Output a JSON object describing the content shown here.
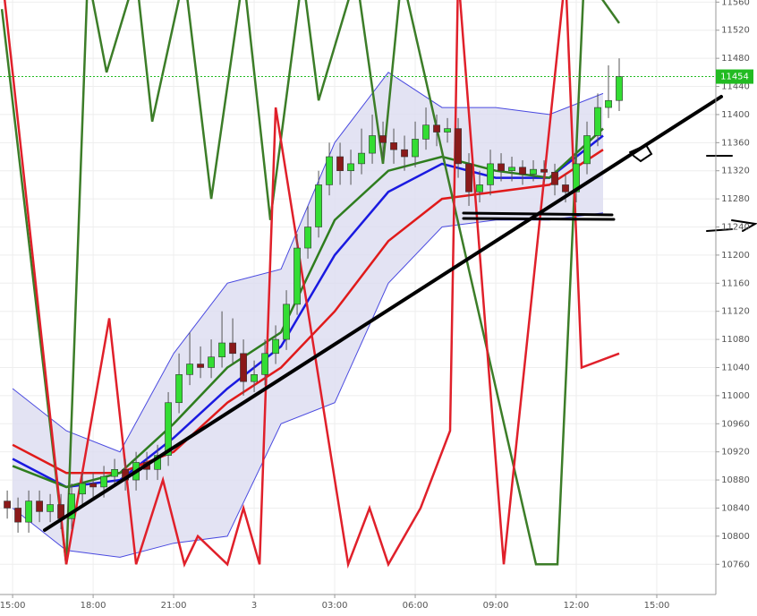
{
  "chart_data": {
    "type": "candlestick",
    "xlim": [
      -0.47,
      26.2
    ],
    "ylim": [
      10717,
      11563
    ],
    "xticks": [
      {
        "value": 0,
        "label": "15:00"
      },
      {
        "value": 3,
        "label": "18:00"
      },
      {
        "value": 6,
        "label": "21:00"
      },
      {
        "value": 9,
        "label": "3"
      },
      {
        "value": 12,
        "label": "03:00"
      },
      {
        "value": 15,
        "label": "06:00"
      },
      {
        "value": 18,
        "label": "09:00"
      },
      {
        "value": 21,
        "label": "12:00"
      },
      {
        "value": 24,
        "label": "15:00"
      }
    ],
    "yticks": [
      10760,
      10800,
      10840,
      10880,
      10920,
      10960,
      11000,
      11040,
      11080,
      11120,
      11160,
      11200,
      11240,
      11280,
      11320,
      11360,
      11400,
      11440,
      11480,
      11520,
      11560
    ],
    "grid": true,
    "up_color": "#33dd33",
    "down_color": "#8b1a1a",
    "x": [
      -0.2,
      0.2,
      0.6,
      1.0,
      1.4,
      1.8,
      2.2,
      2.6,
      3.0,
      3.4,
      3.8,
      4.2,
      4.6,
      5.0,
      5.4,
      5.8,
      6.2,
      6.6,
      7.0,
      7.4,
      7.8,
      8.2,
      8.6,
      9.0,
      9.4,
      9.8,
      10.2,
      10.6,
      11.0,
      11.4,
      11.8,
      12.2,
      12.6,
      13.0,
      13.4,
      13.8,
      14.2,
      14.6,
      15.0,
      15.4,
      15.8,
      16.2,
      16.6,
      17.0,
      17.4,
      17.8,
      18.2,
      18.6,
      19.0,
      19.4,
      19.8,
      20.2,
      20.6,
      21.0,
      21.4,
      21.8,
      22.2,
      22.6
    ],
    "open": [
      10850,
      10840,
      10820,
      10850,
      10835,
      10845,
      10825,
      10860,
      10875,
      10870,
      10885,
      10895,
      10880,
      10905,
      10895,
      10915,
      10990,
      11030,
      11045,
      11040,
      11055,
      11075,
      11060,
      11020,
      11030,
      11060,
      11080,
      11130,
      11210,
      11240,
      11300,
      11340,
      11320,
      11330,
      11345,
      11370,
      11360,
      11350,
      11340,
      11365,
      11385,
      11375,
      11380,
      11330,
      11290,
      11300,
      11330,
      11320,
      11325,
      11315,
      11322,
      11318,
      11300,
      11290,
      11330,
      11370,
      11410,
      11420
    ],
    "high": [
      10865,
      10855,
      10865,
      10865,
      10860,
      10860,
      10875,
      10890,
      10890,
      10900,
      10910,
      10910,
      10920,
      10920,
      10930,
      11005,
      11060,
      11090,
      11070,
      11080,
      11120,
      11110,
      11080,
      11050,
      11080,
      11100,
      11150,
      11230,
      11270,
      11320,
      11360,
      11360,
      11350,
      11380,
      11400,
      11390,
      11380,
      11370,
      11390,
      11410,
      11400,
      11395,
      11395,
      11345,
      11320,
      11350,
      11345,
      11340,
      11335,
      11335,
      11335,
      11330,
      11315,
      11345,
      11390,
      11430,
      11470,
      11480
    ],
    "low": [
      10825,
      10805,
      10805,
      10820,
      10820,
      10810,
      10810,
      10845,
      10855,
      10855,
      10870,
      10865,
      10865,
      10880,
      10880,
      10900,
      10975,
      11015,
      11025,
      11025,
      11040,
      11045,
      11000,
      11005,
      11015,
      11045,
      11065,
      11115,
      11195,
      11225,
      11285,
      11300,
      11300,
      11315,
      11330,
      11340,
      11330,
      11320,
      11325,
      11350,
      11355,
      11360,
      11310,
      11270,
      11275,
      11285,
      11305,
      11305,
      11300,
      11305,
      11305,
      11285,
      11275,
      11275,
      11315,
      11355,
      11395,
      11405
    ],
    "close": [
      10840,
      10820,
      10850,
      10835,
      10845,
      10825,
      10860,
      10875,
      10870,
      10885,
      10895,
      10880,
      10905,
      10895,
      10915,
      10990,
      11030,
      11045,
      11040,
      11055,
      11075,
      11060,
      11020,
      11030,
      11060,
      11080,
      11130,
      11210,
      11240,
      11300,
      11340,
      11320,
      11330,
      11345,
      11370,
      11360,
      11350,
      11340,
      11365,
      11385,
      11375,
      11380,
      11330,
      11290,
      11300,
      11330,
      11320,
      11325,
      11315,
      11322,
      11318,
      11300,
      11290,
      11330,
      11370,
      11410,
      11420,
      11454
    ],
    "bands": {
      "x": [
        0,
        2,
        4,
        6,
        8,
        10,
        12,
        14,
        16,
        18,
        20,
        22
      ],
      "upper": [
        11010,
        10950,
        10920,
        11060,
        11160,
        11180,
        11360,
        11460,
        11410,
        11410,
        11400,
        11430
      ],
      "lower": [
        10840,
        10780,
        10770,
        10790,
        10800,
        10960,
        10990,
        11160,
        11240,
        11250,
        11250,
        11260
      ],
      "fill": "#dcdcf0",
      "color": "#4a4ae0"
    },
    "series": [
      {
        "color": "#1a1ae0",
        "width": 2.5,
        "x": [
          0,
          2,
          4,
          6,
          8,
          10,
          12,
          14,
          16,
          18,
          20,
          22
        ],
        "values": [
          10910,
          10870,
          10880,
          10940,
          11010,
          11070,
          11200,
          11290,
          11330,
          11310,
          11310,
          11370
        ]
      },
      {
        "color": "#e01a1a",
        "width": 2.5,
        "x": [
          0,
          2,
          4,
          6,
          8,
          10,
          12,
          14,
          16,
          18,
          20,
          22
        ],
        "values": [
          10930,
          10890,
          10890,
          10920,
          10990,
          11040,
          11120,
          11220,
          11280,
          11290,
          11300,
          11350
        ]
      },
      {
        "color": "#2e7d1e",
        "width": 2.5,
        "x": [
          0,
          2,
          4,
          6,
          8,
          10,
          12,
          14,
          16,
          18,
          20,
          22
        ],
        "values": [
          10900,
          10870,
          10890,
          10960,
          11040,
          11090,
          11250,
          11320,
          11340,
          11320,
          11310,
          11380
        ]
      },
      {
        "color": "#3c7d28",
        "width": 2.5,
        "x": [
          -0.4,
          2.0,
          2.8,
          3.5,
          4.6,
          5.2,
          6.4,
          7.4,
          8.6,
          9.6,
          10.8,
          11.4,
          12.8,
          13.8,
          14.5,
          16.4,
          19.5,
          20.3,
          21.3,
          22.6
        ],
        "values": [
          11550,
          10760,
          11600,
          11460,
          11600,
          11390,
          11600,
          11280,
          11600,
          11250,
          11600,
          11420,
          11600,
          11330,
          11600,
          11280,
          10760,
          10760,
          11600,
          11530
        ]
      },
      {
        "color": "#e0202a",
        "width": 2.5,
        "x": [
          -0.4,
          2.0,
          3.6,
          4.6,
          5.6,
          6.4,
          6.9,
          8.0,
          8.6,
          9.2,
          9.8,
          12.5,
          13.3,
          14.0,
          15.2,
          16.3,
          16.6,
          18.3,
          20.6,
          21.2,
          22.6
        ],
        "values": [
          11600,
          10760,
          11110,
          10760,
          10880,
          10760,
          10800,
          10760,
          10840,
          10760,
          11410,
          10760,
          10840,
          10760,
          10840,
          10950,
          11600,
          10760,
          11600,
          11040,
          11060
        ]
      }
    ],
    "last_price": {
      "value": 11454,
      "color": "#22bb22"
    }
  }
}
